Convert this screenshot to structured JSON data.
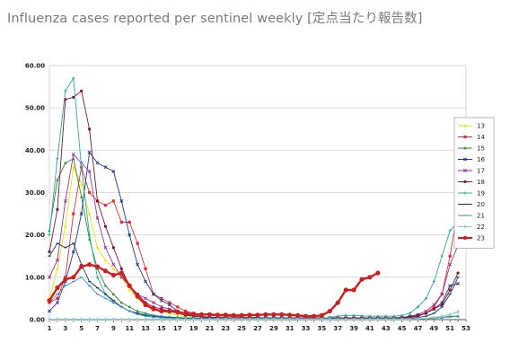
{
  "page": {
    "title": "Influenza cases reported per sentinel weekly [定点当たり報告数]"
  },
  "chart_data": {
    "type": "line",
    "title": "",
    "xlabel": "",
    "ylabel": "",
    "xlim": [
      1,
      53
    ],
    "ylim": [
      0,
      60
    ],
    "y_ticks": [
      "0.00",
      "10.00",
      "20.00",
      "30.00",
      "40.00",
      "50.00",
      "60.00"
    ],
    "x_ticks": [
      "1",
      "3",
      "5",
      "7",
      "9",
      "11",
      "13",
      "15",
      "17",
      "19",
      "21",
      "23",
      "25",
      "27",
      "29",
      "31",
      "33",
      "35",
      "37",
      "39",
      "41",
      "43",
      "45",
      "47",
      "49",
      "51",
      "53"
    ],
    "grid": "horizontal",
    "legend_position": "right",
    "series": [
      {
        "name": "13",
        "color": "#e6e600",
        "marker": "triangle",
        "values": [
          5,
          12,
          22,
          36,
          32,
          25,
          17,
          14,
          12,
          10,
          7,
          5,
          3.5,
          2.5,
          2,
          1.5,
          1,
          0.6,
          0.4,
          0.3,
          0.2,
          0.2,
          0.2,
          0.1,
          0.1,
          0.1,
          0.1,
          0.1,
          0.1,
          0.1,
          0.1,
          0.1,
          0.1,
          0.1,
          0.1,
          0.1,
          0.1,
          0.1,
          0.1,
          0.1,
          0.1,
          0.1,
          0.1,
          0.1,
          0.1,
          0.1,
          0.2,
          0.3,
          0.5,
          0.8,
          1.2,
          2.0
        ]
      },
      {
        "name": "14",
        "color": "#e0302e",
        "marker": "square",
        "values": [
          4,
          5,
          10,
          25,
          36,
          30,
          28,
          27,
          28,
          23,
          23,
          18,
          12,
          6,
          5,
          4,
          3,
          2,
          1.5,
          1.2,
          1.0,
          0.9,
          0.8,
          0.7,
          0.6,
          0.5,
          0.5,
          0.4,
          0.4,
          0.4,
          0.3,
          0.3,
          0.3,
          0.3,
          0.3,
          0.3,
          0.3,
          0.3,
          0.3,
          0.3,
          0.3,
          0.3,
          0.3,
          0.3,
          0.3,
          0.5,
          0.8,
          1.5,
          3,
          6,
          15,
          26.5
        ]
      },
      {
        "name": "15",
        "color": "#2e8b2e",
        "marker": "triangle",
        "values": [
          21,
          33,
          37,
          38,
          29,
          19,
          12,
          8,
          6,
          4,
          3,
          2,
          1.5,
          1,
          0.8,
          0.6,
          0.4,
          0.3,
          0.2,
          0.2,
          0.2,
          0.1,
          0.1,
          0.1,
          0.1,
          0.1,
          0.1,
          0.1,
          0.1,
          0.1,
          0.1,
          0.1,
          0.1,
          0.1,
          0.1,
          0.1,
          0.1,
          0.1,
          0.1,
          0.1,
          0.1,
          0.1,
          0.1,
          0.1,
          0.1,
          0.1,
          0.1,
          0.2,
          0.3,
          0.5,
          0.8,
          0.8
        ]
      },
      {
        "name": "16",
        "color": "#1f3a8a",
        "marker": "x",
        "values": [
          2,
          4,
          9,
          16,
          25,
          39.5,
          37,
          36,
          35,
          28,
          20,
          13,
          9,
          6,
          4.5,
          3.5,
          2,
          1.2,
          0.8,
          0.6,
          0.5,
          0.4,
          0.4,
          0.3,
          0.3,
          0.3,
          0.3,
          0.3,
          0.3,
          0.3,
          0.3,
          0.3,
          0.3,
          0.3,
          0.3,
          0.3,
          0.3,
          0.3,
          0.3,
          0.3,
          0.3,
          0.3,
          0.3,
          0.3,
          0.4,
          0.6,
          1,
          1.5,
          2.5,
          4,
          8,
          8.5
        ]
      },
      {
        "name": "17",
        "color": "#9932a0",
        "marker": "x",
        "values": [
          10,
          14,
          28,
          39,
          37,
          35,
          24,
          17,
          13,
          10,
          8,
          6,
          5,
          4,
          3,
          2.5,
          2,
          1.5,
          1,
          0.8,
          0.6,
          0.5,
          0.5,
          0.4,
          0.4,
          0.4,
          0.4,
          0.4,
          0.4,
          0.4,
          0.4,
          0.4,
          0.4,
          0.4,
          0.4,
          0.4,
          0.4,
          0.4,
          0.4,
          0.4,
          0.4,
          0.4,
          0.4,
          0.4,
          0.5,
          0.8,
          1.2,
          2,
          3.5,
          6,
          13,
          17.5
        ]
      },
      {
        "name": "18",
        "color": "#7a1a2a",
        "marker": "circle",
        "values": [
          16,
          26,
          52,
          52.5,
          54,
          45,
          28,
          22,
          17,
          12,
          8,
          6,
          4,
          3,
          2.5,
          2,
          1.5,
          1,
          0.8,
          0.6,
          0.5,
          0.5,
          0.4,
          0.4,
          0.4,
          0.4,
          0.4,
          0.4,
          0.4,
          0.4,
          0.4,
          0.4,
          0.4,
          0.4,
          0.4,
          0.4,
          0.4,
          0.4,
          0.4,
          0.4,
          0.4,
          0.4,
          0.4,
          0.4,
          0.5,
          0.7,
          1,
          1.5,
          2.5,
          3.5,
          7,
          11
        ]
      },
      {
        "name": "19",
        "color": "#2aa8a8",
        "marker": "plus",
        "values": [
          20,
          38,
          54,
          57,
          36,
          20,
          10,
          6,
          4,
          3,
          2,
          1.5,
          1.2,
          1,
          0.8,
          0.6,
          0.5,
          0.4,
          0.4,
          0.3,
          0.3,
          0.3,
          0.3,
          0.3,
          0.3,
          0.3,
          0.3,
          0.3,
          0.3,
          0.3,
          0.3,
          0.3,
          0.3,
          0.3,
          0.3,
          0.5,
          0.8,
          1,
          1,
          0.9,
          0.8,
          0.8,
          0.8,
          0.8,
          1,
          1.5,
          3,
          5,
          9,
          15,
          21,
          23
        ]
      },
      {
        "name": "20",
        "color": "#1a3a6a",
        "marker": "dash",
        "values": [
          15,
          18,
          17,
          18,
          13,
          9,
          7.5,
          6,
          4.5,
          3,
          2,
          1.5,
          1,
          0.8,
          0.6,
          0.5,
          0.4,
          0.3,
          0.3,
          0.3,
          0.3,
          0.2,
          0.2,
          0.2,
          0.2,
          0.2,
          0.2,
          0.2,
          0.2,
          0.2,
          0.2,
          0.2,
          0.2,
          0.2,
          0.2,
          0.2,
          0.2,
          0.2,
          0.2,
          0.2,
          0.2,
          0.2,
          0.2,
          0.2,
          0.2,
          0.3,
          0.5,
          0.8,
          1.5,
          3,
          6,
          10
        ]
      },
      {
        "name": "21",
        "color": "#4a90c8",
        "marker": "dash",
        "values": [
          4,
          6,
          8,
          9,
          10,
          8,
          6,
          5,
          4,
          3,
          2,
          1.2,
          0.8,
          0.5,
          0.4,
          0.3,
          0.3,
          0.2,
          0.2,
          0.2,
          0.2,
          0.2,
          0.2,
          0.2,
          0.2,
          0.2,
          0.2,
          0.2,
          0.2,
          0.2,
          0.2,
          0.2,
          0.2,
          0.2,
          0.2,
          0.2,
          0.2,
          0.2,
          0.2,
          0.2,
          0.2,
          0.2,
          0.2,
          0.2,
          0.2,
          0.2,
          0.2,
          0.3,
          0.4,
          0.5,
          0.6,
          0.8
        ]
      },
      {
        "name": "22",
        "color": "#8ad0d8",
        "marker": "diamond",
        "values": [
          0.1,
          0.1,
          0.1,
          0.1,
          0.1,
          0.1,
          0.1,
          0.1,
          0.1,
          0.1,
          0.1,
          0.1,
          0.1,
          0.1,
          0.1,
          0.1,
          0.1,
          0.1,
          0.1,
          0.1,
          0.1,
          0.1,
          0.1,
          0.1,
          0.1,
          0.1,
          0.1,
          0.1,
          0.1,
          0.1,
          0.1,
          0.1,
          0.1,
          0.1,
          0.1,
          0.1,
          0.1,
          0.1,
          0.1,
          0.1,
          0.1,
          0.1,
          0.1,
          0.1,
          0.1,
          0.1,
          0.2,
          0.3,
          0.5,
          0.8,
          1.2,
          1.8
        ]
      },
      {
        "name": "23",
        "color": "#cc1f1f",
        "marker": "circle",
        "bold": true,
        "values": [
          4.5,
          7.5,
          9.5,
          10,
          12.5,
          13,
          12.5,
          11.5,
          10.5,
          11,
          8,
          5.5,
          3.5,
          2.5,
          2,
          2,
          1.8,
          1.5,
          1.3,
          1.2,
          1.2,
          1.1,
          1.1,
          1.0,
          1.0,
          1.1,
          1.1,
          1.2,
          1.2,
          1.2,
          1.1,
          1.0,
          0.8,
          0.8,
          1.0,
          2.0,
          4.0,
          7.0,
          7.0,
          9.5,
          10,
          11
        ]
      }
    ]
  }
}
